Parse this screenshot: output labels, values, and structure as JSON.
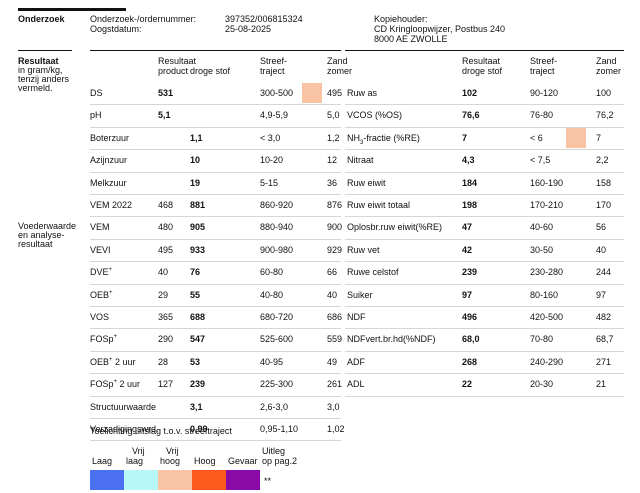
{
  "header": {
    "section_title": "Onderzoek",
    "order_label": "Onderzoek-/ordernummer:",
    "order_value": "397352/006815324",
    "date_label": "Oogstdatum:",
    "date_value": "25-08-2025",
    "copy_holder_label": "Kopiehouder:",
    "copy_holder_line1": "CD Kringloopwijzer, Postbus 240",
    "copy_holder_line2": "8000 AE  ZWOLLE"
  },
  "result_section": {
    "title": "Resultaat",
    "subtitle_lines": [
      "in gram/kg,",
      "tenzij anders",
      "vermeld."
    ]
  },
  "feed_section": {
    "lines": [
      "Voederwaarde",
      "en analyse-",
      "resultaat"
    ]
  },
  "left_columns": {
    "result_line1": "Resultaat",
    "product": "product",
    "droge_stof": "droge stof",
    "target_line1": "Streef-",
    "target_line2": "traject",
    "zand_line1": "Zand",
    "zand_line2": "zomer"
  },
  "right_columns": {
    "result_line1": "Resultaat",
    "result_line2": "droge stof",
    "target_line1": "Streef-",
    "target_line2": "traject",
    "zand_line1": "Zand",
    "zand_line2": "zomer"
  },
  "left_rows": [
    {
      "label": "DS",
      "sup": "",
      "product": "531",
      "ds": "",
      "target": "300-500",
      "zand": "495",
      "highlight": "hoog"
    },
    {
      "label": "pH",
      "sup": "",
      "product": "5,1",
      "ds": "",
      "target": "4,9-5,9",
      "zand": "5,0",
      "highlight": ""
    },
    {
      "label": "Boterzuur",
      "sup": "",
      "product": "",
      "ds": "1,1",
      "target": "< 3,0",
      "zand": "1,2",
      "highlight": ""
    },
    {
      "label": "Azijnzuur",
      "sup": "",
      "product": "",
      "ds": "10",
      "target": "10-20",
      "zand": "12",
      "highlight": ""
    },
    {
      "label": "Melkzuur",
      "sup": "",
      "product": "",
      "ds": "19",
      "target": "5-15",
      "zand": "36",
      "highlight": ""
    },
    {
      "label": "VEM 2022",
      "sup": "",
      "product": "468",
      "ds": "881",
      "target": "860-920",
      "zand": "876",
      "highlight": ""
    },
    {
      "label": "VEM",
      "sup": "",
      "product": "480",
      "ds": "905",
      "target": "880-940",
      "zand": "900",
      "highlight": ""
    },
    {
      "label": "VEVI",
      "sup": "",
      "product": "495",
      "ds": "933",
      "target": "900-980",
      "zand": "929",
      "highlight": ""
    },
    {
      "label": "DVE",
      "sup": "+",
      "product": "40",
      "ds": "76",
      "target": "60-80",
      "zand": "66",
      "highlight": ""
    },
    {
      "label": "OEB",
      "sup": "+",
      "product": "29",
      "ds": "55",
      "target": "40-80",
      "zand": "40",
      "highlight": ""
    },
    {
      "label": "VOS",
      "sup": "",
      "product": "365",
      "ds": "688",
      "target": "680-720",
      "zand": "686",
      "highlight": ""
    },
    {
      "label": "FOSp",
      "sup": "+",
      "product": "290",
      "ds": "547",
      "target": "525-600",
      "zand": "559",
      "highlight": ""
    },
    {
      "label": "OEB",
      "sup": "+",
      "suffix": " 2 uur",
      "product": "28",
      "ds": "53",
      "target": "40-95",
      "zand": "49",
      "highlight": ""
    },
    {
      "label": "FOSp",
      "sup": "+",
      "suffix": " 2 uur",
      "product": "127",
      "ds": "239",
      "target": "225-300",
      "zand": "261",
      "highlight": ""
    },
    {
      "label": "Structuurwaarde",
      "sup": "",
      "product": "",
      "ds": "3,1",
      "target": "2,6-3,0",
      "zand": "3,0",
      "highlight": ""
    },
    {
      "label": "Verzadigingswrd.",
      "sup": "",
      "product": "",
      "ds": "0,99",
      "target": "0,95-1,10",
      "zand": "1,02",
      "highlight": ""
    }
  ],
  "right_rows": [
    {
      "label": "Ruw as",
      "ds": "102",
      "target": "90-120",
      "zand": "100",
      "highlight": ""
    },
    {
      "label": "VCOS (%OS)",
      "ds": "76,6",
      "target": "76-80",
      "zand": "76,2",
      "highlight": ""
    },
    {
      "label_pre": "NH",
      "label_sub": "3",
      "label_post": "-fractie (%RE)",
      "ds": "7",
      "target": "< 6",
      "zand": "7",
      "highlight": "hoog"
    },
    {
      "label": "Nitraat",
      "ds": "4,3",
      "target": "< 7,5",
      "zand": "2,2",
      "highlight": ""
    },
    {
      "label": "Ruw eiwit",
      "ds": "184",
      "target": "160-190",
      "zand": "158",
      "highlight": ""
    },
    {
      "label": "Ruw eiwit totaal",
      "ds": "198",
      "target": "170-210",
      "zand": "170",
      "highlight": ""
    },
    {
      "label": "Oplosbr.ruw eiwit(%RE)",
      "ds": "47",
      "target": "40-60",
      "zand": "56",
      "highlight": ""
    },
    {
      "label": "Ruw vet",
      "ds": "42",
      "target": "30-50",
      "zand": "40",
      "highlight": ""
    },
    {
      "label": "Ruwe celstof",
      "ds": "239",
      "target": "230-280",
      "zand": "244",
      "highlight": ""
    },
    {
      "label": "Suiker",
      "ds": "97",
      "target": "80-160",
      "zand": "97",
      "highlight": ""
    },
    {
      "label": "NDF",
      "ds": "496",
      "target": "420-500",
      "zand": "482",
      "highlight": ""
    },
    {
      "label": "NDFvert.br.hd(%NDF)",
      "ds": "68,0",
      "target": "70-80",
      "zand": "68,7",
      "highlight": ""
    },
    {
      "label": "ADF",
      "ds": "268",
      "target": "240-290",
      "zand": "271",
      "highlight": ""
    },
    {
      "label": "ADL",
      "ds": "22",
      "target": "20-30",
      "zand": "21",
      "highlight": ""
    }
  ],
  "legend": {
    "title": "Toelichting uitslag t.o.v. streeftraject",
    "items": [
      {
        "line1": "",
        "line2": "Laag",
        "color": "#4a6ff0"
      },
      {
        "line1": "Vrij",
        "line2": "laag",
        "color": "#b8f7f7"
      },
      {
        "line1": "Vrij",
        "line2": "hoog",
        "color": "#f8c4a4"
      },
      {
        "line1": "",
        "line2": "Hoog",
        "color": "#ff5a1e"
      },
      {
        "line1": "",
        "line2": "Gevaar",
        "color": "#8a0aa8"
      }
    ],
    "note_line1": "Uitleg",
    "note_line2": "op pag.2",
    "marker": "**"
  },
  "colors": {
    "hoog_highlight": "#f8c4a4"
  }
}
